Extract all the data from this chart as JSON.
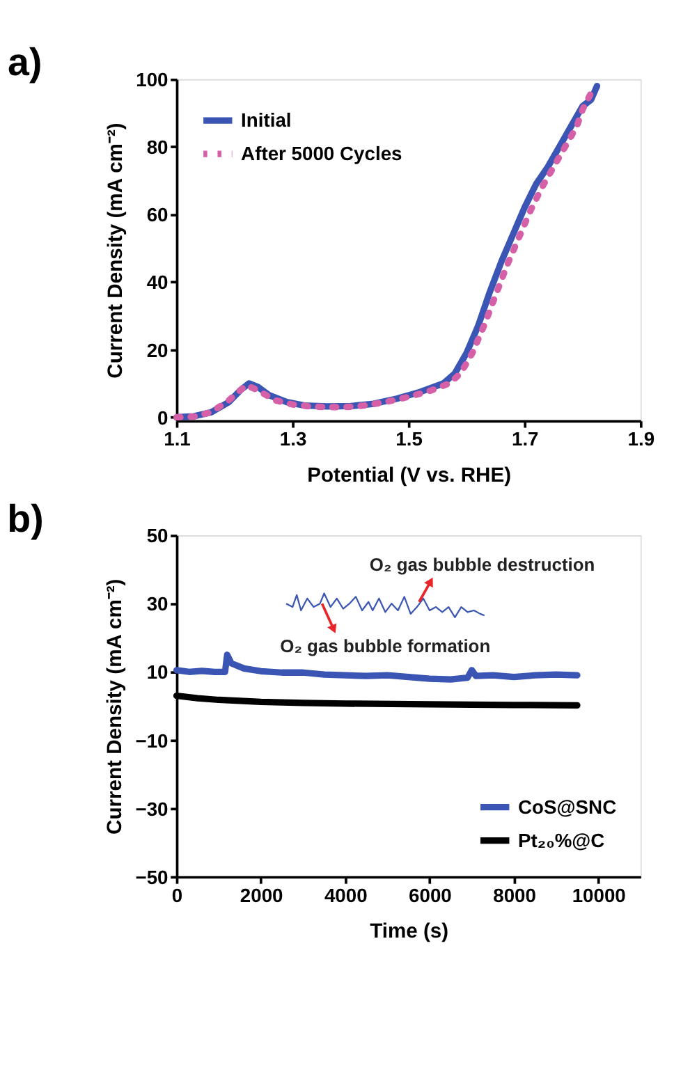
{
  "chart_data": [
    {
      "type": "line",
      "title": "a)",
      "xlabel": "Potential (V vs. RHE)",
      "ylabel": "Current Density (mA cm⁻²)",
      "xlim": [
        1.1,
        1.9
      ],
      "xticks": [
        1.1,
        1.3,
        1.5,
        1.7,
        1.9
      ],
      "ylim": [
        -1,
        100
      ],
      "yticks": [
        0,
        20,
        40,
        60,
        80,
        100
      ],
      "legend": "top left",
      "series": [
        {
          "name": "Initial",
          "color": "#3a55b4",
          "line_style": "solid",
          "x": [
            1.1,
            1.13,
            1.16,
            1.19,
            1.21,
            1.225,
            1.24,
            1.26,
            1.29,
            1.32,
            1.36,
            1.4,
            1.44,
            1.48,
            1.52,
            1.56,
            1.58,
            1.6,
            1.62,
            1.64,
            1.66,
            1.68,
            1.7,
            1.72,
            1.74,
            1.76,
            1.78,
            1.8,
            1.815,
            1.825
          ],
          "values": [
            0,
            0.3,
            1.5,
            4.5,
            8,
            10,
            9,
            6.5,
            4.5,
            3.5,
            3.2,
            3.3,
            4,
            5.5,
            7.5,
            10,
            13,
            19,
            27,
            37,
            46,
            54,
            62,
            69,
            74,
            80,
            86,
            92,
            94,
            98
          ]
        },
        {
          "name": "After 5000 Cycles",
          "color": "#d660a8",
          "line_style": "dotted",
          "x": [
            1.1,
            1.13,
            1.16,
            1.19,
            1.22,
            1.24,
            1.27,
            1.3,
            1.33,
            1.36,
            1.39,
            1.42,
            1.45,
            1.48,
            1.51,
            1.54,
            1.57,
            1.59,
            1.61,
            1.63,
            1.65,
            1.67,
            1.69,
            1.71,
            1.73,
            1.75,
            1.77,
            1.79,
            1.8,
            1.815
          ],
          "values": [
            0,
            0.2,
            1.5,
            5,
            9.5,
            8,
            5,
            3.8,
            3.2,
            3,
            3,
            3.4,
            4.2,
            5.2,
            6.5,
            8,
            10,
            13,
            19,
            27,
            36,
            45,
            53,
            61,
            68,
            74,
            80,
            86,
            91,
            96
          ]
        }
      ]
    },
    {
      "type": "line",
      "title": "b)",
      "xlabel": "Time (s)",
      "ylabel": "Current Density (mA cm⁻²)",
      "xlim": [
        0,
        11000
      ],
      "xticks": [
        0,
        2000,
        4000,
        6000,
        8000,
        10000
      ],
      "ylim": [
        -50,
        50
      ],
      "yticks": [
        -50,
        -30,
        -10,
        10,
        30,
        50
      ],
      "legend": "bottom right",
      "annotations": [
        {
          "text": "O₂ gas bubble destruction",
          "x": 5750,
          "y": 30.5
        },
        {
          "text": "O₂ gas bubble formation",
          "x": 3450,
          "y": 30
        }
      ],
      "series": [
        {
          "name": "CoS@SNC",
          "color": "#3a55b4",
          "line_style": "solid",
          "x": [
            0,
            300,
            600,
            900,
            1150,
            1200,
            1300,
            1600,
            2000,
            2500,
            3000,
            3500,
            4000,
            4500,
            5000,
            5500,
            6000,
            6500,
            6900,
            7000,
            7100,
            7500,
            8000,
            8500,
            9000,
            9500
          ],
          "values": [
            10.5,
            10,
            10.3,
            10,
            10,
            15,
            12.5,
            11,
            10.2,
            9.8,
            9.8,
            9.2,
            9,
            8.8,
            9,
            8.5,
            8,
            7.8,
            8.3,
            10.5,
            8.8,
            9,
            8.5,
            9,
            9.2,
            9
          ]
        },
        {
          "name": "Pt₂₀%@C",
          "color": "#000000",
          "line_style": "solid",
          "x": [
            0,
            500,
            1000,
            2000,
            3000,
            4000,
            6000,
            8000,
            9500
          ],
          "values": [
            3,
            2.3,
            1.8,
            1.2,
            0.9,
            0.7,
            0.5,
            0.3,
            0.2
          ]
        },
        {
          "color": "#3a55b4",
          "line_style": "solid",
          "x": [
            2600,
            2750,
            2850,
            2950,
            3100,
            3250,
            3400,
            3500,
            3650,
            3800,
            3950,
            4100,
            4250,
            4400,
            4550,
            4650,
            4800,
            4950,
            5100,
            5250,
            5400,
            5550,
            5700,
            5850,
            6000,
            6150,
            6300,
            6450,
            6600,
            6750,
            6900,
            7050,
            7200,
            7300
          ],
          "values": [
            30,
            29,
            32.5,
            28,
            31.5,
            29,
            30,
            33,
            29,
            31.5,
            28.5,
            30,
            32,
            28,
            30.5,
            28,
            31.5,
            27.5,
            30,
            28,
            32,
            27,
            29,
            31.5,
            28,
            29,
            27.5,
            29,
            26,
            29,
            27.5,
            28,
            27,
            26.5
          ]
        }
      ]
    }
  ]
}
